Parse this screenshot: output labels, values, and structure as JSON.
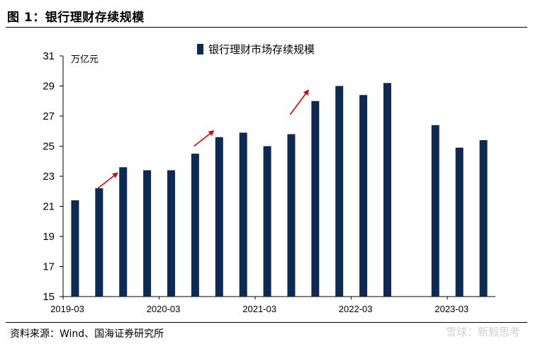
{
  "figure_title": "图 1：银行理财存续规模",
  "source_note": "资料来源：Wind、国海证券研究所",
  "watermark": "雪球：新毅思考",
  "colors": {
    "bar": "#0d2a52",
    "arrow": "#e00000",
    "axis": "#000000"
  },
  "chart_data": {
    "type": "bar",
    "unit_label": "万亿元",
    "legend_position": "top-center",
    "grid": false,
    "ylim": [
      15,
      31
    ],
    "yticks": [
      15,
      17,
      19,
      21,
      23,
      25,
      27,
      29,
      31
    ],
    "x_labels": [
      {
        "index": 0,
        "label": "2019-03"
      },
      {
        "index": 4,
        "label": "2020-03"
      },
      {
        "index": 8,
        "label": "2021-03"
      },
      {
        "index": 12,
        "label": "2022-03"
      },
      {
        "index": 16,
        "label": "2023-03"
      }
    ],
    "series": [
      {
        "name": "银行理财市场存续规模",
        "values": [
          21.4,
          22.2,
          23.6,
          23.4,
          23.4,
          24.5,
          25.6,
          25.9,
          25.0,
          25.8,
          28.0,
          29.0,
          28.4,
          29.2,
          null,
          26.4,
          24.9,
          25.4
        ]
      }
    ],
    "annotations": [
      {
        "type": "arrow",
        "from": [
          0.95,
          22.2
        ],
        "to": [
          1.75,
          23.2
        ]
      },
      {
        "type": "arrow",
        "from": [
          4.95,
          25.0
        ],
        "to": [
          5.75,
          26.0
        ]
      },
      {
        "type": "arrow",
        "from": [
          8.95,
          27.1
        ],
        "to": [
          9.7,
          28.7
        ]
      }
    ]
  }
}
